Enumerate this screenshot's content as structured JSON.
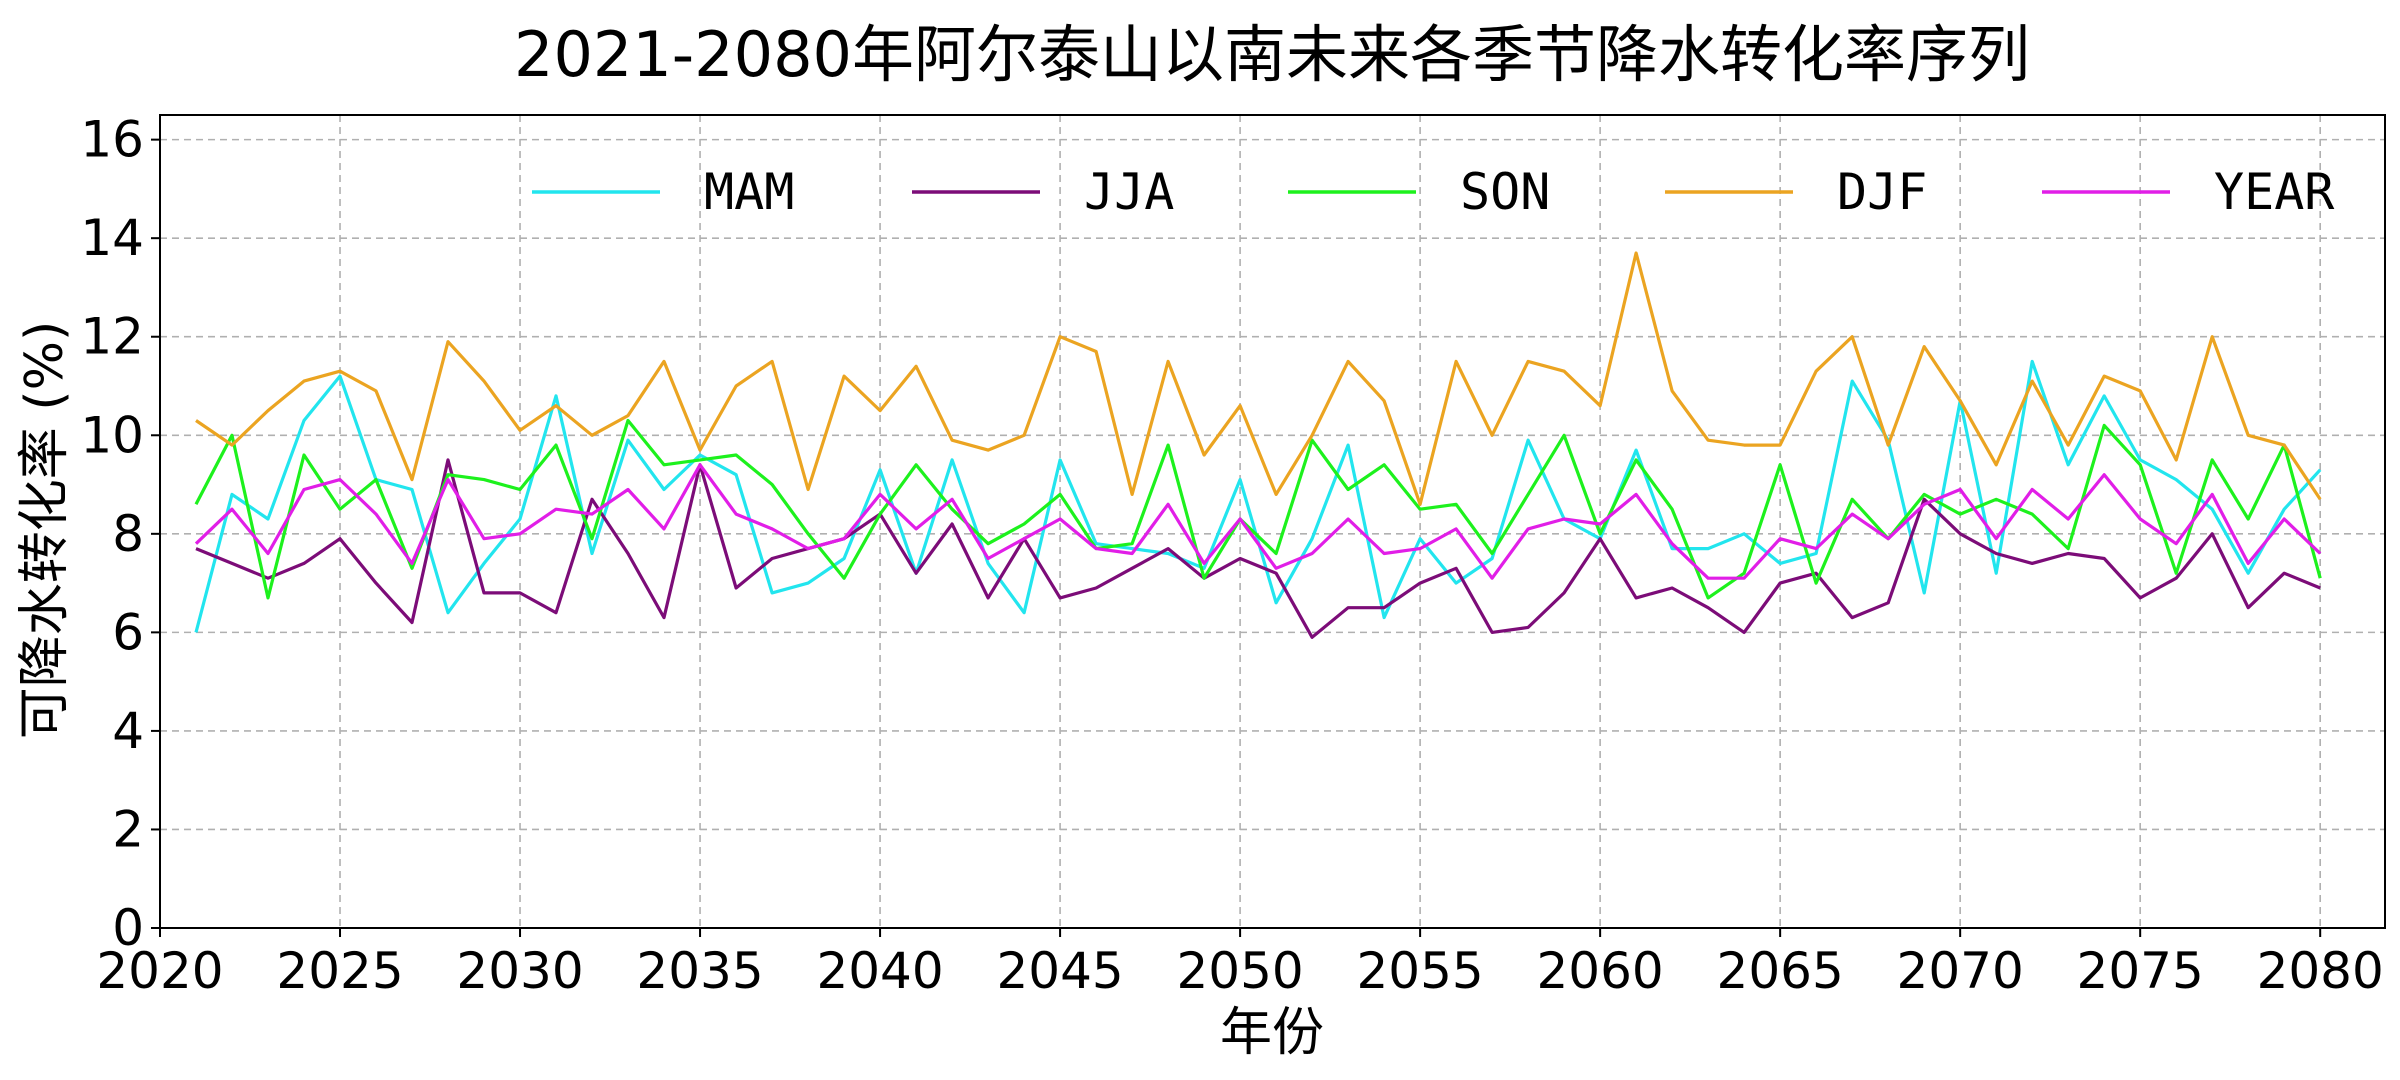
{
  "chart_data": {
    "type": "line",
    "title": "2021-2080年阿尔泰山以南未来各季节降水转化率序列",
    "xlabel": "年份",
    "ylabel": "可降水转化率 (%)",
    "xlim": [
      2020,
      2081.8
    ],
    "ylim": [
      0,
      16.5
    ],
    "xticks": [
      2020,
      2025,
      2030,
      2035,
      2040,
      2045,
      2050,
      2055,
      2060,
      2065,
      2070,
      2075,
      2080
    ],
    "yticks": [
      0,
      2,
      4,
      6,
      8,
      10,
      12,
      14,
      16
    ],
    "grid": true,
    "legend_position": "top-right",
    "x": [
      2021,
      2022,
      2023,
      2024,
      2025,
      2026,
      2027,
      2028,
      2029,
      2030,
      2031,
      2032,
      2033,
      2034,
      2035,
      2036,
      2037,
      2038,
      2039,
      2040,
      2041,
      2042,
      2043,
      2044,
      2045,
      2046,
      2047,
      2048,
      2049,
      2050,
      2051,
      2052,
      2053,
      2054,
      2055,
      2056,
      2057,
      2058,
      2059,
      2060,
      2061,
      2062,
      2063,
      2064,
      2065,
      2066,
      2067,
      2068,
      2069,
      2070,
      2071,
      2072,
      2073,
      2074,
      2075,
      2076,
      2077,
      2078,
      2079,
      2080
    ],
    "series": [
      {
        "name": "MAM",
        "color": "#22e5ee",
        "values": [
          6.0,
          8.8,
          8.3,
          10.3,
          11.2,
          9.1,
          8.9,
          6.4,
          7.4,
          8.3,
          10.8,
          7.6,
          9.9,
          8.9,
          9.6,
          9.2,
          6.8,
          7.0,
          7.5,
          9.3,
          7.2,
          9.5,
          7.4,
          6.4,
          9.5,
          7.8,
          7.7,
          7.6,
          7.3,
          9.1,
          6.6,
          7.9,
          9.8,
          6.3,
          7.9,
          7.0,
          7.5,
          9.9,
          8.3,
          7.9,
          9.7,
          7.7,
          7.7,
          8.0,
          7.4,
          7.6,
          11.1,
          9.9,
          6.8,
          10.7,
          7.2,
          11.5,
          9.4,
          10.8,
          9.5,
          9.1,
          8.5,
          7.2,
          8.5,
          9.3
        ]
      },
      {
        "name": "JJA",
        "color": "#7c0c78",
        "values": [
          7.7,
          7.4,
          7.1,
          7.4,
          7.9,
          7.0,
          6.2,
          9.5,
          6.8,
          6.8,
          6.4,
          8.7,
          7.6,
          6.3,
          9.4,
          6.9,
          7.5,
          7.7,
          7.9,
          8.4,
          7.2,
          8.2,
          6.7,
          7.9,
          6.7,
          6.9,
          7.3,
          7.7,
          7.1,
          7.5,
          7.2,
          5.9,
          6.5,
          6.5,
          7.0,
          7.3,
          6.0,
          6.1,
          6.8,
          7.9,
          6.7,
          6.9,
          6.5,
          6.0,
          7.0,
          7.2,
          6.3,
          6.6,
          8.7,
          8.0,
          7.6,
          7.4,
          7.6,
          7.5,
          6.7,
          7.1,
          8.0,
          6.5,
          7.2,
          6.9
        ]
      },
      {
        "name": "SON",
        "color": "#1df11d",
        "values": [
          8.6,
          10.0,
          6.7,
          9.6,
          8.5,
          9.1,
          7.3,
          9.2,
          9.1,
          8.9,
          9.8,
          7.9,
          10.3,
          9.4,
          9.5,
          9.6,
          9.0,
          8.0,
          7.1,
          8.4,
          9.4,
          8.5,
          7.8,
          8.2,
          8.8,
          7.7,
          7.8,
          9.8,
          7.1,
          8.3,
          7.6,
          9.9,
          8.9,
          9.4,
          8.5,
          8.6,
          7.6,
          8.8,
          10.0,
          8.0,
          9.5,
          8.5,
          6.7,
          7.2,
          9.4,
          7.0,
          8.7,
          7.9,
          8.8,
          8.4,
          8.7,
          8.4,
          7.7,
          10.2,
          9.4,
          7.2,
          9.5,
          8.3,
          9.8,
          7.1
        ]
      },
      {
        "name": "DJF",
        "color": "#eba421",
        "values": [
          10.3,
          9.8,
          10.5,
          11.1,
          11.3,
          10.9,
          9.1,
          11.9,
          11.1,
          10.1,
          10.6,
          10.0,
          10.4,
          11.5,
          9.7,
          11.0,
          11.5,
          8.9,
          11.2,
          10.5,
          11.4,
          9.9,
          9.7,
          10.0,
          12.0,
          11.7,
          8.8,
          11.5,
          9.6,
          10.6,
          8.8,
          10.0,
          11.5,
          10.7,
          8.6,
          11.5,
          10.0,
          11.5,
          11.3,
          10.6,
          13.7,
          10.9,
          9.9,
          9.8,
          9.8,
          11.3,
          12.0,
          9.8,
          11.8,
          10.7,
          9.4,
          11.1,
          9.8,
          11.2,
          10.9,
          9.5,
          12.0,
          10.0,
          9.8,
          8.7
        ]
      },
      {
        "name": "YEAR",
        "color": "#e11ee7",
        "values": [
          7.8,
          8.5,
          7.6,
          8.9,
          9.1,
          8.4,
          7.4,
          9.1,
          7.9,
          8.0,
          8.5,
          8.4,
          8.9,
          8.1,
          9.4,
          8.4,
          8.1,
          7.7,
          7.9,
          8.8,
          8.1,
          8.7,
          7.5,
          7.9,
          8.3,
          7.7,
          7.6,
          8.6,
          7.4,
          8.3,
          7.3,
          7.6,
          8.3,
          7.6,
          7.7,
          8.1,
          7.1,
          8.1,
          8.3,
          8.2,
          8.8,
          7.8,
          7.1,
          7.1,
          7.9,
          7.7,
          8.4,
          7.9,
          8.6,
          8.9,
          7.9,
          8.9,
          8.3,
          9.2,
          8.3,
          7.8,
          8.8,
          7.4,
          8.3,
          7.6
        ]
      }
    ]
  }
}
